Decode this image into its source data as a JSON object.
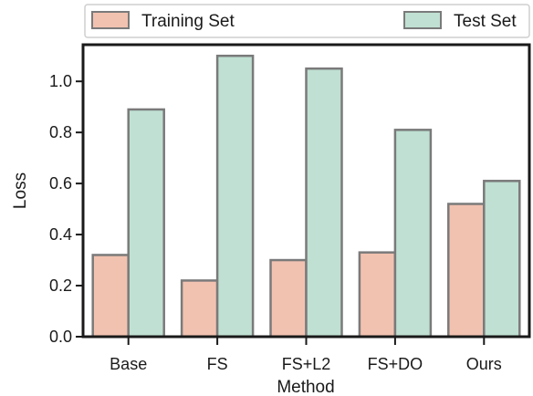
{
  "chart_data": {
    "type": "bar",
    "categories": [
      "Base",
      "FS",
      "FS+L2",
      "FS+DO",
      "Ours"
    ],
    "series": [
      {
        "name": "Training Set",
        "values": [
          0.32,
          0.22,
          0.3,
          0.33,
          0.52
        ],
        "color": "#f2c2b0"
      },
      {
        "name": "Test Set",
        "values": [
          0.89,
          1.1,
          1.05,
          0.81,
          0.61
        ],
        "color": "#bfe0d2"
      }
    ],
    "title": "",
    "xlabel": "Method",
    "ylabel": "Loss",
    "ylim": [
      0,
      1.14
    ],
    "yticks": [
      "0.0",
      "0.2",
      "0.4",
      "0.6",
      "0.8",
      "1.0"
    ],
    "grid": false,
    "legend_position": "top",
    "edge_color": "#7a7a7a"
  }
}
